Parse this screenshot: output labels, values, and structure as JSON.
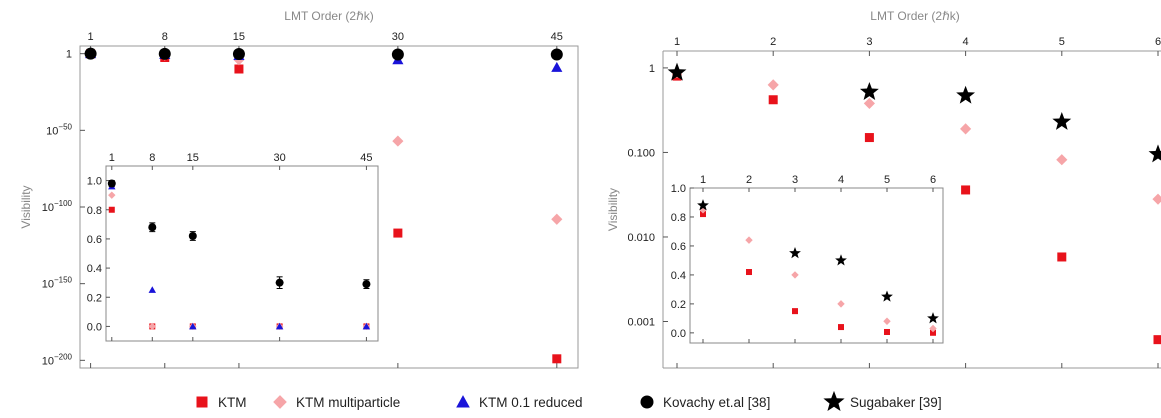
{
  "legend": [
    {
      "key": "ktm",
      "label": "KTM",
      "color": "#e8121b",
      "marker": "square"
    },
    {
      "key": "ktm_mp",
      "label": "KTM multiparticle",
      "color": "#f6a5a8",
      "marker": "diamond"
    },
    {
      "key": "ktm_red",
      "label": "KTM 0.1 reduced",
      "color": "#1a14d9",
      "marker": "triangle"
    },
    {
      "key": "kovachy",
      "label": "Kovachy et.al [38]",
      "color": "#000000",
      "marker": "circle"
    },
    {
      "key": "sugabaker",
      "label": "Sugabaker [39]",
      "color": "#000000",
      "marker": "star"
    }
  ],
  "chart_data": [
    {
      "id": "left-main",
      "type": "scatter",
      "xlabel_top": "LMT Order (2ℏk)",
      "ylabel": "Visibility",
      "y_scale": "log",
      "xlim": [
        0,
        47
      ],
      "ylim_log10": [
        -205,
        5
      ],
      "x_ticks": [
        1,
        8,
        15,
        30,
        45
      ],
      "y_ticks": [
        {
          "exp": 0,
          "label": "1"
        },
        {
          "exp": -50,
          "label": "10−50"
        },
        {
          "exp": -100,
          "label": "10−100"
        },
        {
          "exp": -150,
          "label": "10−150"
        },
        {
          "exp": -200,
          "label": "10−200"
        }
      ],
      "series": [
        {
          "name": "KTM",
          "x": [
            1,
            8,
            15,
            30,
            45
          ],
          "log10_y": [
            -0.05,
            -2.5,
            -10,
            -117,
            -199
          ]
        },
        {
          "name": "KTM multiparticle",
          "x": [
            1,
            8,
            15,
            30,
            45
          ],
          "log10_y": [
            -0.04,
            -1,
            -4,
            -57,
            -108
          ]
        },
        {
          "name": "KTM 0.1 reduced",
          "x": [
            1,
            8,
            15,
            30,
            45
          ],
          "log10_y": [
            -0.02,
            -0.6,
            -1.2,
            -4,
            -9
          ]
        },
        {
          "name": "Kovachy et.al [38]",
          "x": [
            1,
            8,
            15,
            30,
            45
          ],
          "log10_y": [
            -0.01,
            -0.17,
            -0.21,
            -0.52,
            -0.55
          ]
        }
      ]
    },
    {
      "id": "left-inset",
      "type": "scatter",
      "y_scale": "linear",
      "xlim": [
        0,
        47
      ],
      "ylim": [
        -0.1,
        1.1
      ],
      "x_ticks": [
        1,
        8,
        15,
        30,
        45
      ],
      "y_ticks": [
        "0.0",
        "0.2",
        "0.4",
        "0.6",
        "0.8",
        "1.0"
      ],
      "series": [
        {
          "name": "KTM",
          "x": [
            1,
            8,
            15,
            30,
            45
          ],
          "y": [
            0.8,
            0.0,
            0.0,
            0.0,
            0.0
          ]
        },
        {
          "name": "KTM multiparticle",
          "x": [
            1,
            8,
            15,
            30,
            45
          ],
          "y": [
            0.9,
            0.0,
            0.0,
            0.0,
            0.0
          ]
        },
        {
          "name": "KTM 0.1 reduced",
          "x": [
            1,
            8,
            15,
            30,
            45
          ],
          "y": [
            0.96,
            0.25,
            0.0,
            0.0,
            0.0
          ]
        },
        {
          "name": "Kovachy et.al [38]",
          "x": [
            1,
            8,
            15,
            30,
            45
          ],
          "y": [
            0.98,
            0.68,
            0.62,
            0.3,
            0.29
          ],
          "err": [
            0.02,
            0.03,
            0.03,
            0.04,
            0.03
          ]
        }
      ]
    },
    {
      "id": "right-main",
      "type": "scatter",
      "xlabel_top": "LMT Order (2ℏk)",
      "ylabel": "Visibility",
      "y_scale": "log",
      "xlim": [
        0.9,
        6
      ],
      "ylim_log10": [
        -3.55,
        0.2
      ],
      "x_ticks": [
        1,
        2,
        3,
        4,
        5,
        6
      ],
      "y_ticks": [
        {
          "exp": 0,
          "label": "1"
        },
        {
          "exp": -1,
          "label": "0.100"
        },
        {
          "exp": -2,
          "label": "0.010"
        },
        {
          "exp": -3,
          "label": "0.001"
        }
      ],
      "series": [
        {
          "name": "KTM",
          "x": [
            1,
            2,
            3,
            4,
            5,
            6
          ],
          "y": [
            0.8,
            0.42,
            0.15,
            0.036,
            0.0058,
            0.00061
          ]
        },
        {
          "name": "KTM multiparticle",
          "x": [
            1,
            2,
            3,
            4,
            5,
            6
          ],
          "y": [
            0.88,
            0.63,
            0.38,
            0.19,
            0.082,
            0.028
          ]
        },
        {
          "name": "Sugabaker [39]",
          "x": [
            1,
            2,
            3,
            4,
            5,
            6
          ],
          "y": [
            0.88,
            null,
            0.52,
            0.47,
            0.23,
            0.095
          ]
        }
      ]
    },
    {
      "id": "right-inset",
      "type": "scatter",
      "y_scale": "linear",
      "xlim": [
        0.9,
        6.1
      ],
      "ylim": [
        -0.07,
        1.0
      ],
      "x_ticks": [
        1,
        2,
        3,
        4,
        5,
        6
      ],
      "y_ticks": [
        "0.0",
        "0.2",
        "0.4",
        "0.6",
        "0.8",
        "1.0"
      ],
      "series": [
        {
          "name": "KTM",
          "x": [
            1,
            2,
            3,
            4,
            5,
            6
          ],
          "y": [
            0.82,
            0.42,
            0.15,
            0.04,
            0.006,
            0.0006
          ]
        },
        {
          "name": "KTM multiparticle",
          "x": [
            1,
            2,
            3,
            4,
            5,
            6
          ],
          "y": [
            0.85,
            0.64,
            0.4,
            0.2,
            0.08,
            0.03
          ]
        },
        {
          "name": "Sugabaker [39]",
          "x": [
            1,
            2,
            3,
            4,
            5,
            6
          ],
          "y": [
            0.88,
            null,
            0.55,
            0.5,
            0.25,
            0.1
          ]
        }
      ]
    }
  ]
}
